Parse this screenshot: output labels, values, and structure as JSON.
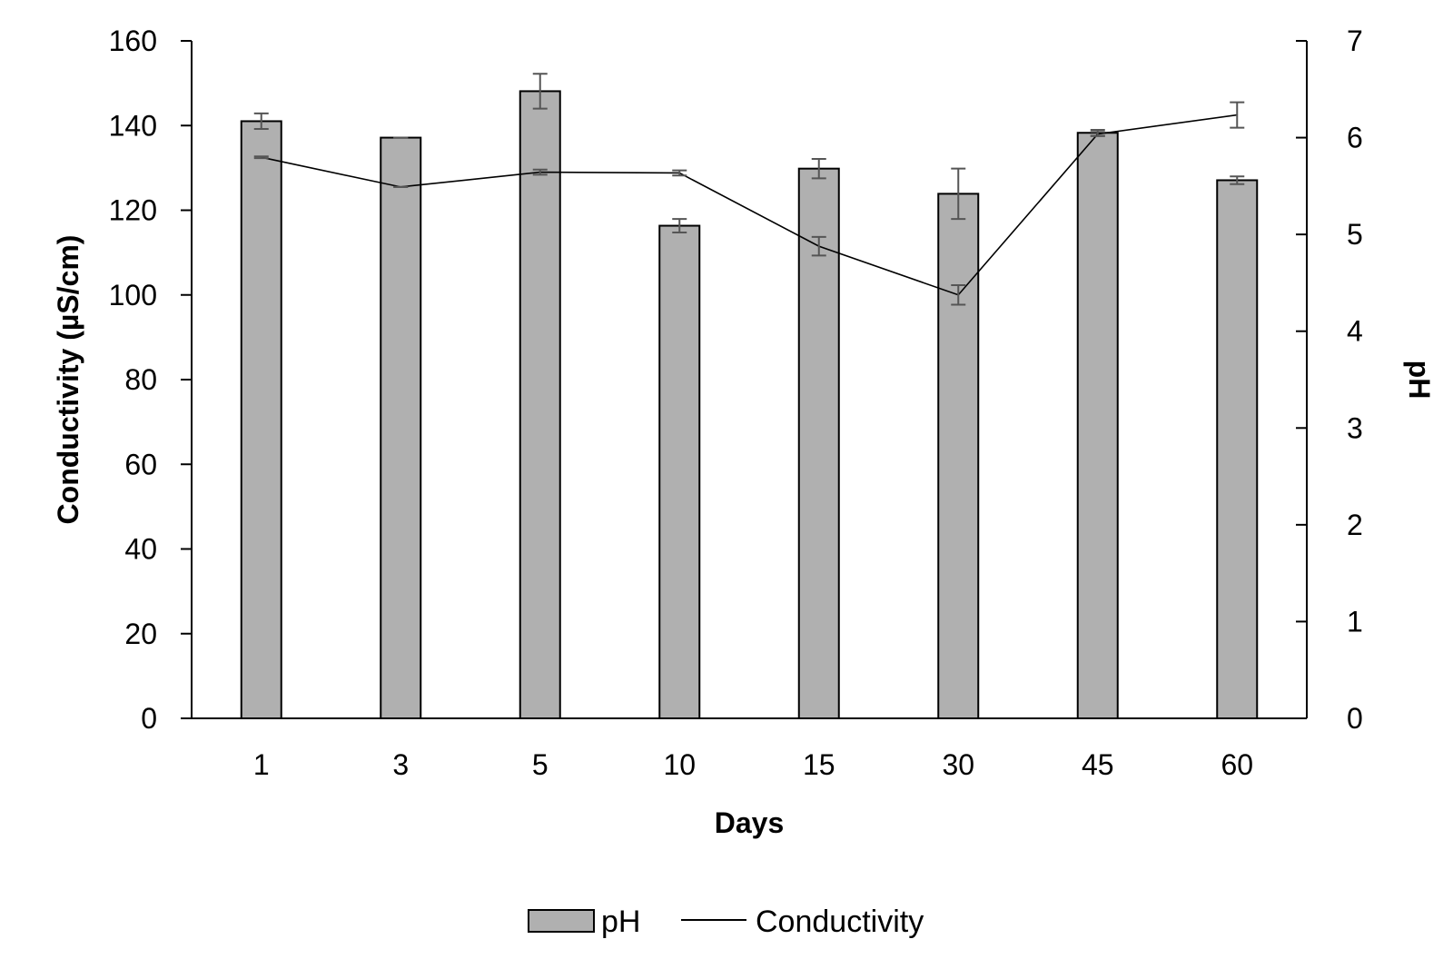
{
  "chart_data": {
    "type": "bar",
    "categories": [
      "1",
      "3",
      "5",
      "10",
      "15",
      "30",
      "45",
      "60"
    ],
    "xlabel": "Days",
    "ylabel_left": "Conductivity (µS/cm)",
    "ylabel_right": "pH",
    "ylim_left": [
      0,
      160
    ],
    "ylim_right": [
      0,
      7
    ],
    "yticks_left": [
      0,
      20,
      40,
      60,
      80,
      100,
      120,
      140,
      160
    ],
    "yticks_right": [
      0,
      1,
      2,
      3,
      4,
      5,
      6,
      7
    ],
    "grid": false,
    "legend_position": "bottom",
    "series": [
      {
        "name": "pH",
        "kind": "bar",
        "axis": "right",
        "color": "#b0b0b0",
        "values": [
          6.17,
          6.0,
          6.48,
          5.09,
          5.68,
          5.42,
          6.05,
          5.56
        ],
        "errors": [
          0.08,
          0.0,
          0.18,
          0.07,
          0.1,
          0.26,
          0.03,
          0.04
        ]
      },
      {
        "name": "Conductivity",
        "kind": "line",
        "axis": "left",
        "color": "#000000",
        "values": [
          132.5,
          125.5,
          129.0,
          128.8,
          111.5,
          100.0,
          138.0,
          142.5
        ],
        "errors": [
          0.2,
          0.0,
          0.6,
          0.6,
          2.2,
          2.3,
          0.5,
          3.0
        ]
      }
    ]
  }
}
